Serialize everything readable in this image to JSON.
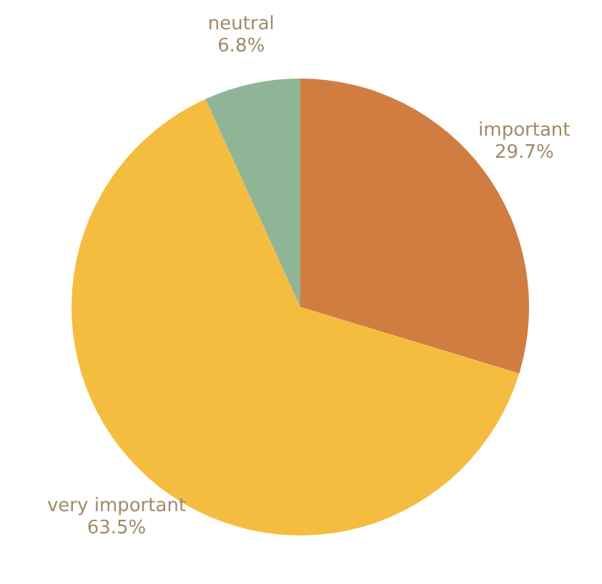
{
  "chart_data": {
    "type": "pie",
    "categories": [
      "important",
      "very important",
      "neutral"
    ],
    "values": [
      29.7,
      63.5,
      6.8
    ],
    "colors": [
      "#d17d42",
      "#f5bd3f",
      "#90b496"
    ],
    "value_labels": [
      "29.7%",
      "63.5%",
      "6.8%"
    ]
  }
}
